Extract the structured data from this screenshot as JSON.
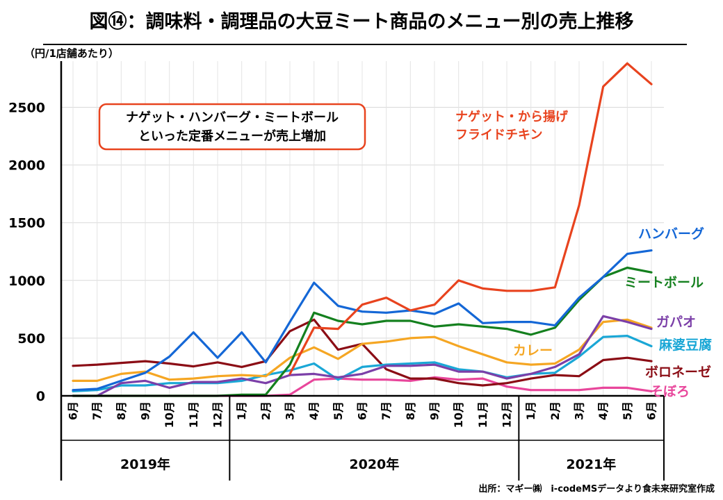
{
  "chart_data": {
    "type": "line",
    "title": "図⑭：調味料・調理品の大豆ミート商品のメニュー別の売上推移",
    "ylabel": "（円/1店舗あたり）",
    "ylim": [
      0,
      2900
    ],
    "yticks": [
      0,
      500,
      1000,
      1500,
      2000,
      2500
    ],
    "categories": [
      "6月",
      "7月",
      "8月",
      "9月",
      "10月",
      "11月",
      "12月",
      "1月",
      "2月",
      "3月",
      "4月",
      "5月",
      "6月",
      "7月",
      "8月",
      "9月",
      "10月",
      "11月",
      "12月",
      "1月",
      "2月",
      "3月",
      "4月",
      "5月",
      "6月"
    ],
    "years": [
      {
        "label": "2019年",
        "start": 0,
        "end": 6
      },
      {
        "label": "2020年",
        "start": 7,
        "end": 18
      },
      {
        "label": "2021年",
        "start": 19,
        "end": 24
      }
    ],
    "series": [
      {
        "name": "そぼろ",
        "label": "そぼろ",
        "color": "#e8469b",
        "values": [
          0,
          0,
          0,
          0,
          0,
          0,
          0,
          0,
          0,
          10,
          140,
          150,
          140,
          140,
          130,
          160,
          140,
          150,
          80,
          50,
          50,
          50,
          70,
          70,
          40
        ]
      },
      {
        "name": "ボロネーゼ",
        "label": "ボロネーゼ",
        "color": "#8b0d15",
        "values": [
          260,
          270,
          285,
          300,
          280,
          255,
          290,
          250,
          300,
          560,
          660,
          400,
          450,
          230,
          150,
          150,
          110,
          90,
          110,
          150,
          180,
          170,
          310,
          330,
          300
        ]
      },
      {
        "name": "麻婆豆腐",
        "label": "麻婆豆腐",
        "color": "#1aa7d6",
        "values": [
          40,
          50,
          90,
          90,
          110,
          110,
          110,
          130,
          180,
          220,
          280,
          140,
          250,
          270,
          280,
          290,
          230,
          210,
          160,
          190,
          200,
          340,
          510,
          520,
          430
        ]
      },
      {
        "name": "カレー",
        "label": "カレー",
        "color": "#f5a623",
        "values": [
          130,
          130,
          190,
          210,
          140,
          150,
          170,
          180,
          170,
          330,
          420,
          320,
          450,
          470,
          500,
          510,
          430,
          360,
          290,
          270,
          280,
          400,
          640,
          660,
          590
        ]
      },
      {
        "name": "ガパオ",
        "label": "ガパオ",
        "color": "#7b3fa8",
        "values": [
          0,
          0,
          110,
          130,
          70,
          120,
          120,
          150,
          110,
          180,
          190,
          160,
          190,
          260,
          260,
          270,
          210,
          210,
          150,
          190,
          250,
          360,
          690,
          640,
          580
        ]
      },
      {
        "name": "ミートボール",
        "label": "ミートボール",
        "color": "#14801e",
        "values": [
          0,
          0,
          0,
          0,
          0,
          0,
          0,
          10,
          10,
          270,
          720,
          650,
          620,
          650,
          650,
          600,
          620,
          600,
          580,
          530,
          590,
          830,
          1030,
          1110,
          1070
        ]
      },
      {
        "name": "ハンバーグ",
        "label": "ハンバーグ",
        "color": "#1467d6",
        "values": [
          50,
          60,
          130,
          200,
          340,
          550,
          330,
          550,
          290,
          640,
          980,
          780,
          730,
          720,
          740,
          710,
          800,
          630,
          640,
          640,
          610,
          850,
          1030,
          1230,
          1260
        ]
      },
      {
        "name": "ナゲット・から揚げ・フライドチキン",
        "label_lines": [
          "ナゲット・から揚げ",
          "フライドチキン"
        ],
        "color": "#e8431e",
        "values": [
          null,
          null,
          null,
          null,
          null,
          null,
          null,
          null,
          null,
          190,
          590,
          580,
          790,
          850,
          740,
          790,
          1000,
          930,
          910,
          910,
          940,
          1650,
          2680,
          2880,
          2700
        ]
      }
    ],
    "annotation_lines": [
      "ナゲット・ハンバーグ・ミートボール",
      "といった定番メニューが売上増加"
    ],
    "annotation_color": "#e8431e"
  },
  "source": "出所：マギー㈱　i-codeMSデータより食未来研究室作成"
}
